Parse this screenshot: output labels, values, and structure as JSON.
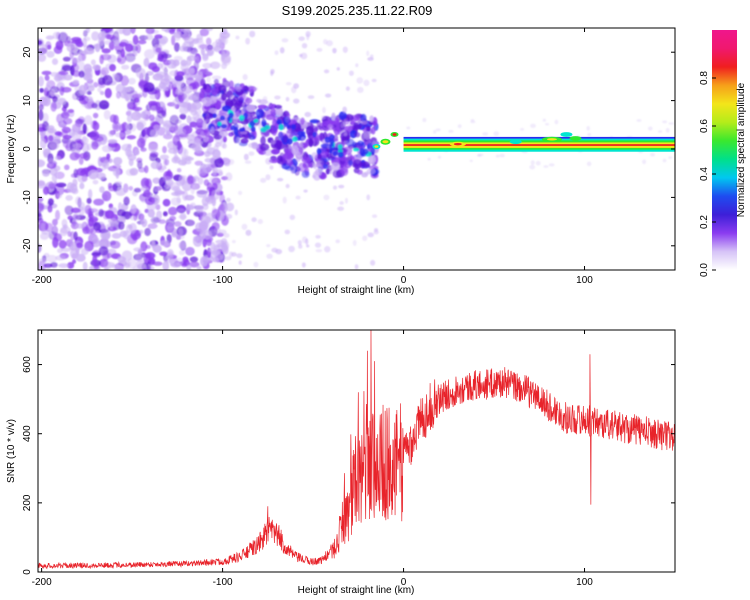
{
  "title": "S199.2025.235.11.22.R09",
  "colors": {
    "snr_line": "#e8232a",
    "purple_dark": "#5a14d8",
    "purple_mid": "#8a3cf0",
    "purple_light": "#c9aef5",
    "blue": "#2a2af0",
    "cyan": "#00e5d0",
    "green": "#2ee82e",
    "yellow": "#f3e51a",
    "red": "#f01f1f"
  },
  "chart_data": [
    {
      "type": "heatmap",
      "title": "S199.2025.235.11.22.R09",
      "xlabel": "Height of straight line (km)",
      "ylabel": "Frequency (Hz)",
      "xlim": [
        -202,
        150
      ],
      "ylim": [
        -25,
        25
      ],
      "x_ticks": [
        -200,
        -100,
        0,
        100
      ],
      "x_tick_labels": [
        "-200",
        "-100",
        "0",
        "100"
      ],
      "y_ticks": [
        -20,
        -10,
        0,
        10,
        20
      ],
      "y_tick_labels": [
        "-20",
        "-10",
        "0",
        "10",
        "20"
      ],
      "colorbar": {
        "label": "Normalized spectral amplitude",
        "range": [
          0,
          1
        ],
        "ticks": [
          0.0,
          0.2,
          0.4,
          0.6,
          0.8
        ],
        "tick_labels": [
          "0.0",
          "0.2",
          "0.4",
          "0.6",
          "0.8"
        ],
        "colormap": [
          "#ffffff",
          "#d6c3f7",
          "#8a3cf0",
          "#3d1fd8",
          "#1e4cf0",
          "#00c8f0",
          "#00e08a",
          "#3ae82e",
          "#b4ec1a",
          "#f3e51a",
          "#f6a01a",
          "#f01f1f",
          "#f0186e",
          "#f0168c"
        ]
      },
      "ridge": {
        "x_range": [
          0,
          150
        ],
        "center_hz": 1.0,
        "half_width_hz": 1.5
      },
      "noise_region_x_range": [
        -202,
        -110
      ]
    },
    {
      "type": "line",
      "xlabel": "Height of straight line (km)",
      "ylabel": "SNR (10 * v/v)",
      "xlim": [
        -202,
        150
      ],
      "ylim": [
        0,
        700
      ],
      "x_ticks": [
        -200,
        -100,
        0,
        100
      ],
      "x_tick_labels": [
        "-200",
        "-100",
        "0",
        "100"
      ],
      "y_ticks": [
        0,
        200,
        400,
        600
      ],
      "y_tick_labels": [
        "0",
        "200",
        "400",
        "600"
      ],
      "series": [
        {
          "name": "SNR",
          "envelope_x": [
            -202,
            -160,
            -120,
            -100,
            -90,
            -80,
            -75,
            -70,
            -65,
            -60,
            -55,
            -50,
            -45,
            -40,
            -35,
            -30,
            -25,
            -20,
            -15,
            -10,
            -5,
            0,
            5,
            10,
            15,
            20,
            30,
            40,
            50,
            55,
            60,
            70,
            80,
            90,
            100,
            110,
            120,
            130,
            140,
            150
          ],
          "envelope_y": [
            18,
            20,
            24,
            30,
            45,
            80,
            120,
            110,
            70,
            45,
            35,
            30,
            35,
            60,
            120,
            200,
            260,
            330,
            300,
            320,
            300,
            330,
            390,
            440,
            480,
            500,
            530,
            540,
            545,
            550,
            540,
            520,
            480,
            445,
            440,
            430,
            420,
            410,
            400,
            390
          ],
          "spikes": [
            {
              "x": -18,
              "y": 705
            },
            {
              "x": -20,
              "y": 640
            },
            {
              "x": -16,
              "y": 610
            },
            {
              "x": -25,
              "y": 520
            },
            {
              "x": 103,
              "y": 630
            },
            {
              "x": 103.5,
              "y": 195
            },
            {
              "x": -75,
              "y": 190
            }
          ]
        }
      ]
    }
  ]
}
